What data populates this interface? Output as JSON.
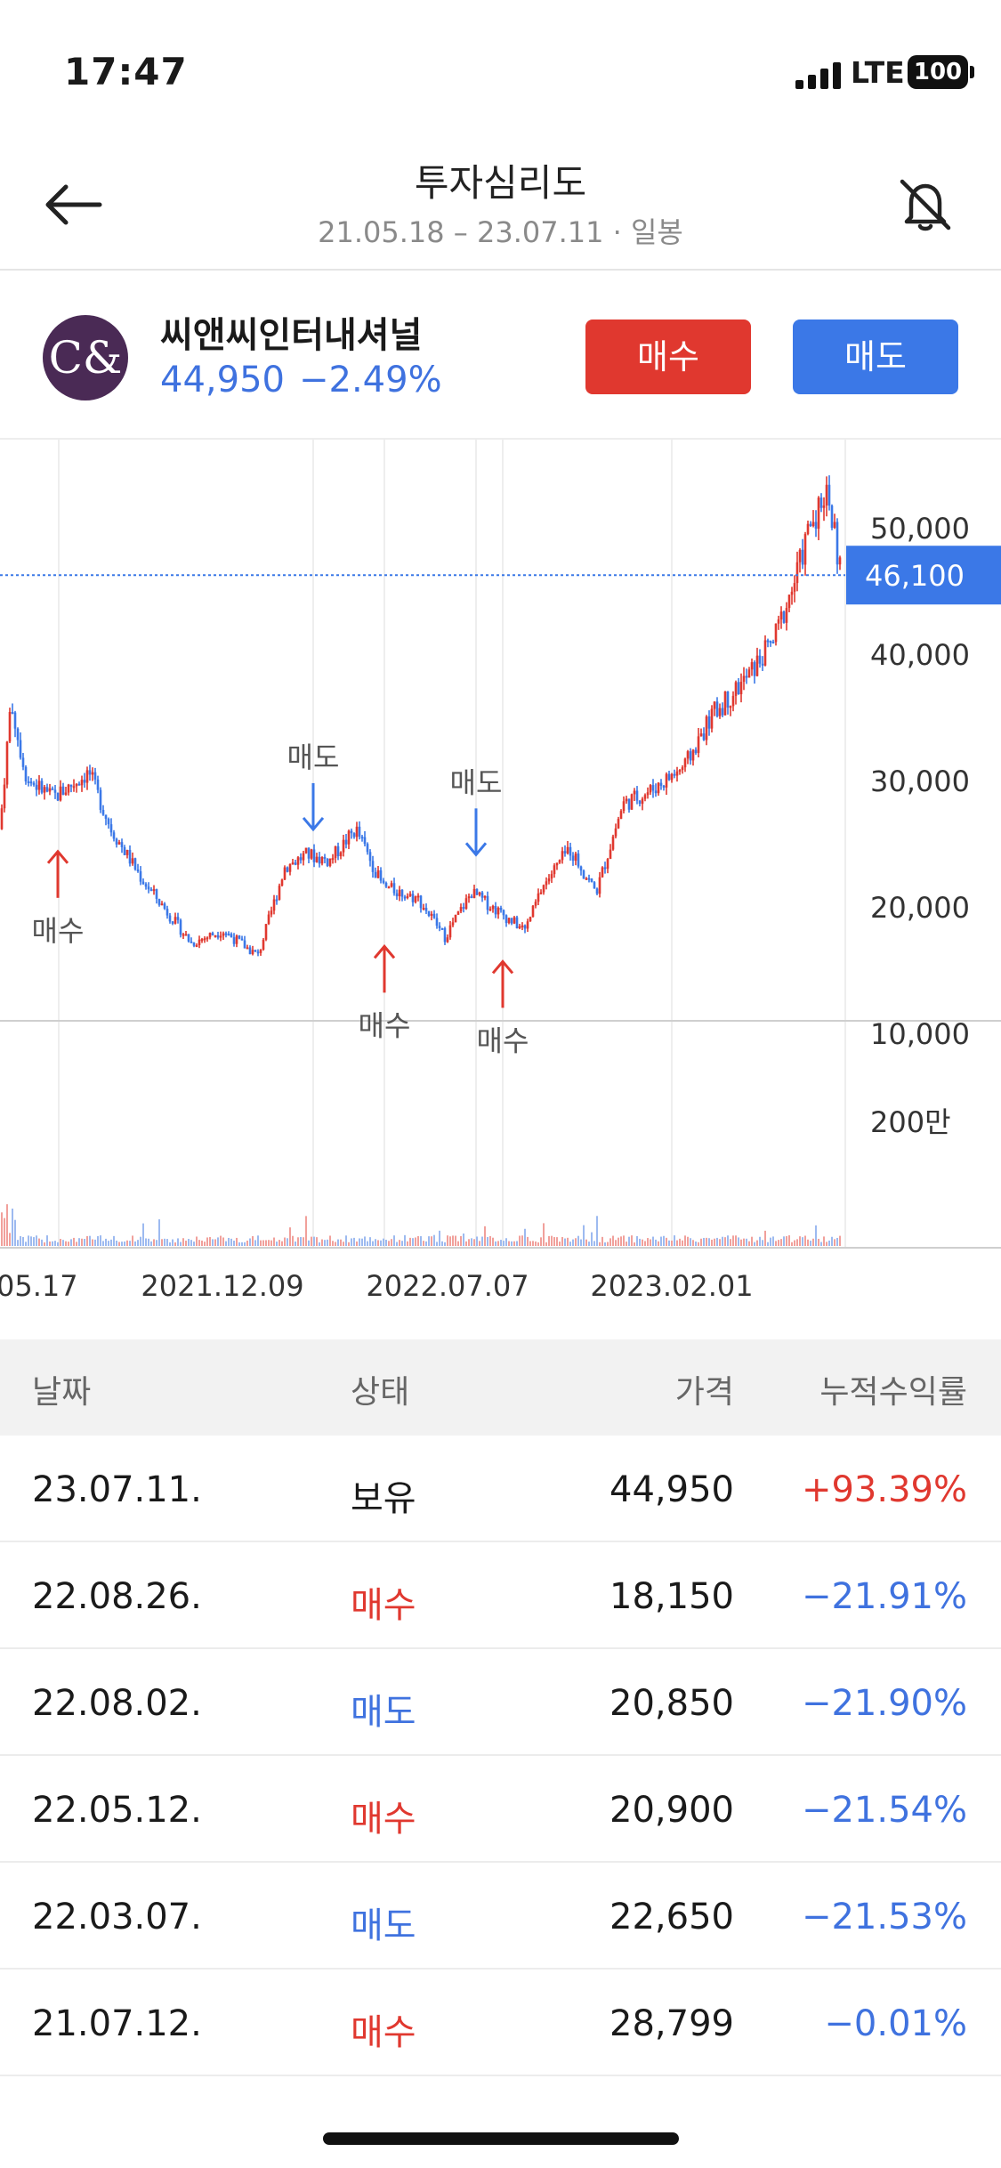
{
  "status_bar": {
    "time": "17:47",
    "network": "LTE",
    "battery": "100"
  },
  "header": {
    "title": "투자심리도",
    "subtitle": "21.05.18 – 23.07.11 · 일봉",
    "back_icon": "arrow-left-icon",
    "bell_icon": "bell-off-icon"
  },
  "stock": {
    "logo_text": "C&",
    "name": "씨앤씨인터내셔널",
    "price": "44,950",
    "change": "−2.49%",
    "buy_label": "매수",
    "sell_label": "매도"
  },
  "colors": {
    "up": "#e0382f",
    "down": "#3b78e7",
    "logo": "#4a2a55"
  },
  "chart_data": {
    "type": "candlestick",
    "y_ticks": [
      10000,
      20000,
      30000,
      40000,
      50000
    ],
    "y_tick_labels": [
      "10,000",
      "20,000",
      "30,000",
      "40,000",
      "50,000"
    ],
    "ylim": [
      10000,
      54000
    ],
    "current_price": 46100,
    "current_price_label": "46,100",
    "volume_tick": 2000000,
    "volume_tick_label": "200만",
    "x_labels": [
      "05.17",
      "2021.12.09",
      "2022.07.07",
      "2023.02.01"
    ],
    "series_anchor_points": [
      [
        0,
        26000
      ],
      [
        12,
        36000
      ],
      [
        30,
        30000
      ],
      [
        60,
        28500
      ],
      [
        100,
        30500
      ],
      [
        125,
        26000
      ],
      [
        160,
        22000
      ],
      [
        215,
        17000
      ],
      [
        250,
        18000
      ],
      [
        290,
        16000
      ],
      [
        320,
        23000
      ],
      [
        345,
        24000
      ],
      [
        370,
        23500
      ],
      [
        400,
        26000
      ],
      [
        430,
        21500
      ],
      [
        470,
        20500
      ],
      [
        500,
        17500
      ],
      [
        530,
        21000
      ],
      [
        560,
        19500
      ],
      [
        590,
        18000
      ],
      [
        610,
        21500
      ],
      [
        640,
        24500
      ],
      [
        670,
        21000
      ],
      [
        700,
        28000
      ],
      [
        730,
        29000
      ],
      [
        770,
        31000
      ],
      [
        800,
        35000
      ],
      [
        840,
        38000
      ],
      [
        870,
        41000
      ],
      [
        895,
        46000
      ],
      [
        910,
        50000
      ],
      [
        930,
        53000
      ],
      [
        945,
        46100
      ]
    ],
    "signals": [
      {
        "type": "buy",
        "label": "매수",
        "x": 65,
        "price": 25500
      },
      {
        "type": "sell",
        "label": "매도",
        "x": 352,
        "price": 25000
      },
      {
        "type": "buy",
        "label": "매수",
        "x": 432,
        "price": 18000
      },
      {
        "type": "sell",
        "label": "매도",
        "x": 535,
        "price": 23000
      },
      {
        "type": "buy",
        "label": "매수",
        "x": 565,
        "price": 16800
      }
    ]
  },
  "table": {
    "headers": {
      "date": "날짜",
      "status": "상태",
      "price": "가격",
      "return": "누적수익률"
    },
    "rows": [
      {
        "date": "23.07.11.",
        "status": "보유",
        "price": "44,950",
        "return": "+93.39%",
        "status_color": "black",
        "return_color": "red"
      },
      {
        "date": "22.08.26.",
        "status": "매수",
        "price": "18,150",
        "return": "−21.91%",
        "status_color": "red",
        "return_color": "blue"
      },
      {
        "date": "22.08.02.",
        "status": "매도",
        "price": "20,850",
        "return": "−21.90%",
        "status_color": "blue",
        "return_color": "blue"
      },
      {
        "date": "22.05.12.",
        "status": "매수",
        "price": "20,900",
        "return": "−21.54%",
        "status_color": "red",
        "return_color": "blue"
      },
      {
        "date": "22.03.07.",
        "status": "매도",
        "price": "22,650",
        "return": "−21.53%",
        "status_color": "blue",
        "return_color": "blue"
      },
      {
        "date": "21.07.12.",
        "status": "매수",
        "price": "28,799",
        "return": "−0.01%",
        "status_color": "red",
        "return_color": "blue"
      }
    ]
  }
}
